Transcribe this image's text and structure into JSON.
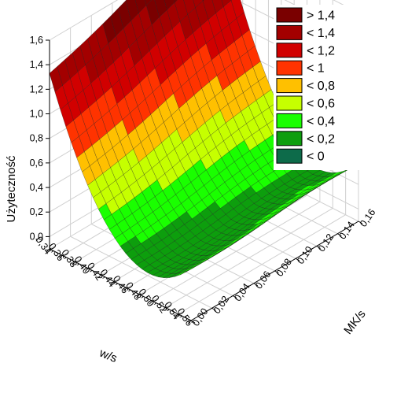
{
  "chart_data": {
    "type": "surface3d",
    "title": "",
    "xlabel": "w/s",
    "ylabel": "MK/s",
    "zlabel": "Użyteczność",
    "x_ticks": [
      "0,34",
      "0,36",
      "0,38",
      "0,40",
      "0,42",
      "0,44",
      "0,46",
      "0,48",
      "0,50",
      "0,52",
      "0,54",
      "0,56"
    ],
    "y_ticks": [
      "0,00",
      "0,02",
      "0,04",
      "0,06",
      "0,08",
      "0,10",
      "0,12",
      "0,14",
      "0,16"
    ],
    "z_ticks": [
      "0,0",
      "0,2",
      "0,4",
      "0,6",
      "0,8",
      "1,0",
      "1,2",
      "1,4",
      "1,6"
    ],
    "xlim": [
      0.34,
      0.56
    ],
    "ylim": [
      0.0,
      0.16
    ],
    "zlim": [
      -0.1,
      1.6
    ],
    "grid": true,
    "legend_position": "top-right",
    "legend": [
      {
        "label": "> 1,4",
        "color": "#7a0000"
      },
      {
        "label": "< 1,4",
        "color": "#a30000"
      },
      {
        "label": "< 1,2",
        "color": "#d10000"
      },
      {
        "label": "< 1",
        "color": "#ff3300"
      },
      {
        "label": "< 0,8",
        "color": "#ffc000"
      },
      {
        "label": "< 0,6",
        "color": "#c6ff00"
      },
      {
        "label": "< 0,4",
        "color": "#1aff00"
      },
      {
        "label": "< 0,2",
        "color": "#0d9e0d"
      },
      {
        "label": "< 0",
        "color": "#0d6b4a"
      }
    ],
    "surface_samples": [
      {
        "x": 0.34,
        "y": 0.0,
        "z": 1.38
      },
      {
        "x": 0.34,
        "y": 0.16,
        "z": 1.55
      },
      {
        "x": 0.45,
        "y": 0.0,
        "z": 0.1
      },
      {
        "x": 0.45,
        "y": 0.16,
        "z": 0.12
      },
      {
        "x": 0.56,
        "y": 0.0,
        "z": 0.1
      },
      {
        "x": 0.56,
        "y": 0.16,
        "z": 0.2
      }
    ]
  }
}
